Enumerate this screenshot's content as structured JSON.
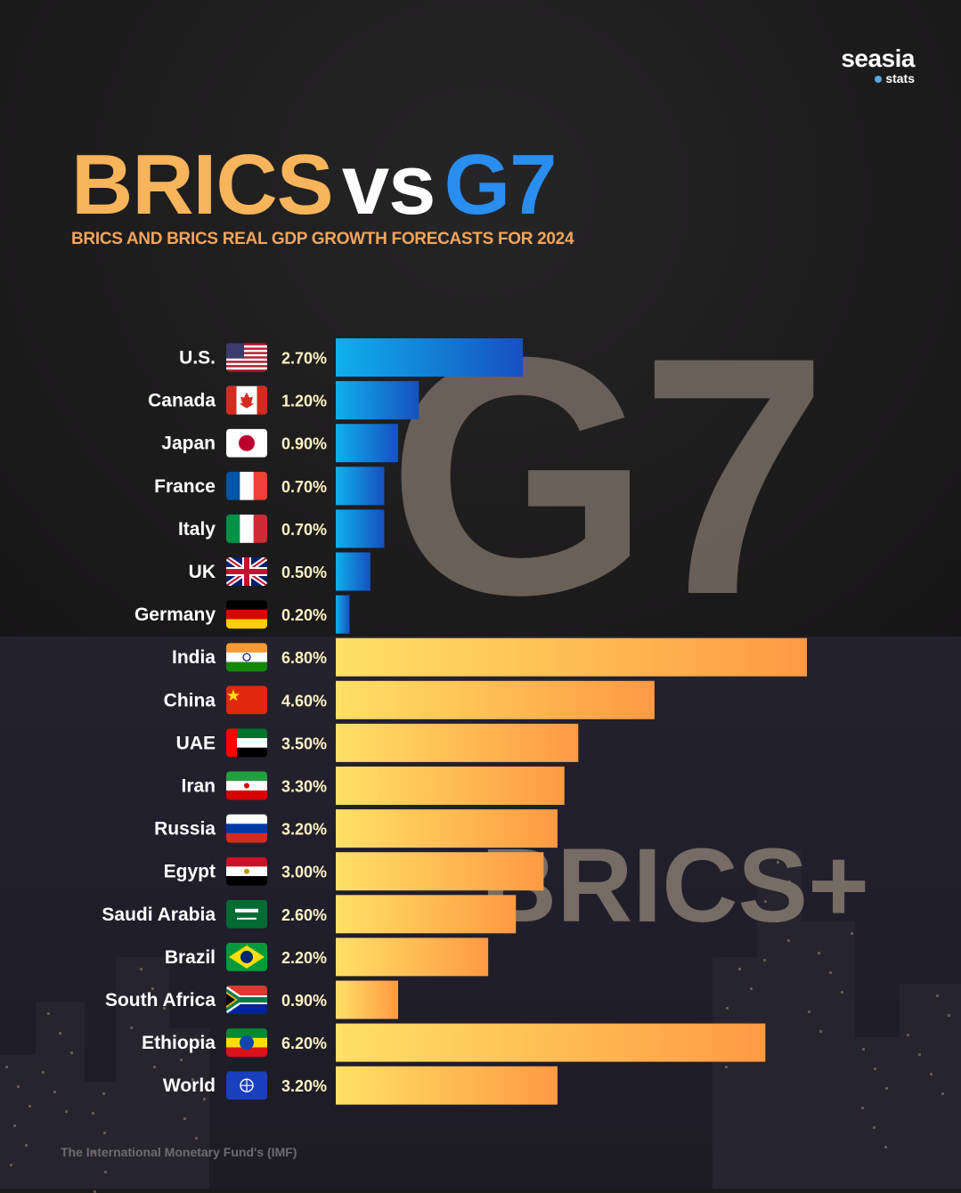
{
  "brand": {
    "name": "seasia",
    "sub": "stats"
  },
  "title": {
    "part1": "BRICS",
    "part2": "vs",
    "part3": "G7"
  },
  "subtitle": "BRICS AND BRICS REAL GDP GROWTH FORECASTS FOR 2024",
  "watermarks": {
    "g7": "G7",
    "brics": "BRICS+"
  },
  "source": "The International Monetary Fund's (IMF)",
  "colors": {
    "title_brics": "#f7b45a",
    "title_g7": "#2a8ef0",
    "g7_bar_start": "#0fb0ec",
    "g7_bar_end": "#1650c0",
    "brics_bar_start": "#ffe066",
    "brics_bar_end": "#ff9a42"
  },
  "chart_data": {
    "type": "bar",
    "orientation": "horizontal",
    "title": "BRICS vs G7",
    "subtitle": "BRICS AND BRICS REAL GDP GROWTH FORECASTS FOR 2024",
    "categories": [
      "U.S.",
      "Canada",
      "Japan",
      "France",
      "Italy",
      "UK",
      "Germany",
      "India",
      "China",
      "UAE",
      "Iran",
      "Russia",
      "Egypt",
      "Saudi Arabia",
      "Brazil",
      "South Africa",
      "Ethiopia",
      "World"
    ],
    "values": [
      2.7,
      1.2,
      0.9,
      0.7,
      0.7,
      0.5,
      0.2,
      6.8,
      4.6,
      3.5,
      3.3,
      3.2,
      3.0,
      2.6,
      2.2,
      0.9,
      6.2,
      3.2
    ],
    "value_labels": [
      "2.70%",
      "1.20%",
      "0.90%",
      "0.70%",
      "0.70%",
      "0.50%",
      "0.20%",
      "6.80%",
      "4.60%",
      "3.50%",
      "3.30%",
      "3.20%",
      "3.00%",
      "2.60%",
      "2.20%",
      "0.90%",
      "6.20%",
      "3.20%"
    ],
    "groups": [
      "G7",
      "G7",
      "G7",
      "G7",
      "G7",
      "G7",
      "G7",
      "BRICS",
      "BRICS",
      "BRICS",
      "BRICS",
      "BRICS",
      "BRICS",
      "BRICS",
      "BRICS",
      "BRICS",
      "BRICS",
      "World"
    ],
    "flags": [
      "us-flag",
      "canada-flag",
      "japan-flag",
      "france-flag",
      "italy-flag",
      "uk-flag",
      "germany-flag",
      "india-flag",
      "china-flag",
      "uae-flag",
      "iran-flag",
      "russia-flag",
      "egypt-flag",
      "saudi-arabia-flag",
      "brazil-flag",
      "south-africa-flag",
      "ethiopia-flag",
      "world-flag"
    ],
    "unit": "%",
    "xlim": [
      0,
      6.8
    ],
    "grid": false,
    "legend": "none"
  }
}
